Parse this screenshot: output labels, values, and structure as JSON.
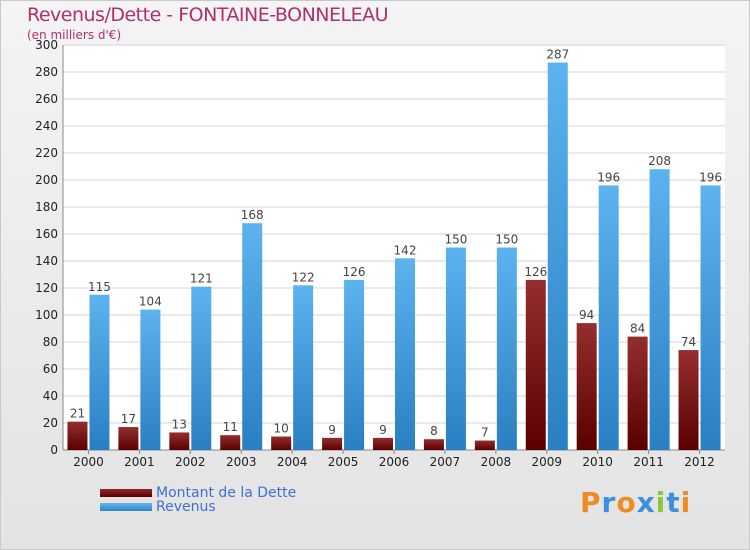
{
  "chart_data": {
    "type": "bar",
    "title": "Revenus/Dette - FONTAINE-BONNELEAU",
    "subtitle": "(en milliers d'€)",
    "categories": [
      "2000",
      "2001",
      "2002",
      "2003",
      "2004",
      "2005",
      "2006",
      "2007",
      "2008",
      "2009",
      "2010",
      "2011",
      "2012"
    ],
    "series": [
      {
        "name": "Montant de la Dette",
        "color": "#7a1414",
        "values": [
          21,
          17,
          13,
          11,
          10,
          9,
          9,
          8,
          7,
          126,
          94,
          84,
          74
        ]
      },
      {
        "name": "Revenus",
        "color": "#4ba3e3",
        "values": [
          115,
          104,
          121,
          168,
          122,
          126,
          142,
          150,
          150,
          287,
          196,
          208,
          196
        ]
      }
    ],
    "ylim": [
      0,
      300
    ],
    "yticks": [
      0,
      20,
      40,
      60,
      80,
      100,
      120,
      140,
      160,
      180,
      200,
      220,
      240,
      260,
      280,
      300
    ],
    "grid": true,
    "legend": "bottom-left"
  },
  "logo": {
    "letters": [
      {
        "char": "P",
        "color": "#f08a24"
      },
      {
        "char": "r",
        "color": "#3d8fe0"
      },
      {
        "char": "o",
        "color": "#f08a24"
      },
      {
        "char": "x",
        "color": "#3d8fe0"
      },
      {
        "char": "i",
        "color": "#8cc63f"
      },
      {
        "char": "t",
        "color": "#3d8fe0"
      },
      {
        "char": "i",
        "color": "#f08a24"
      }
    ]
  }
}
